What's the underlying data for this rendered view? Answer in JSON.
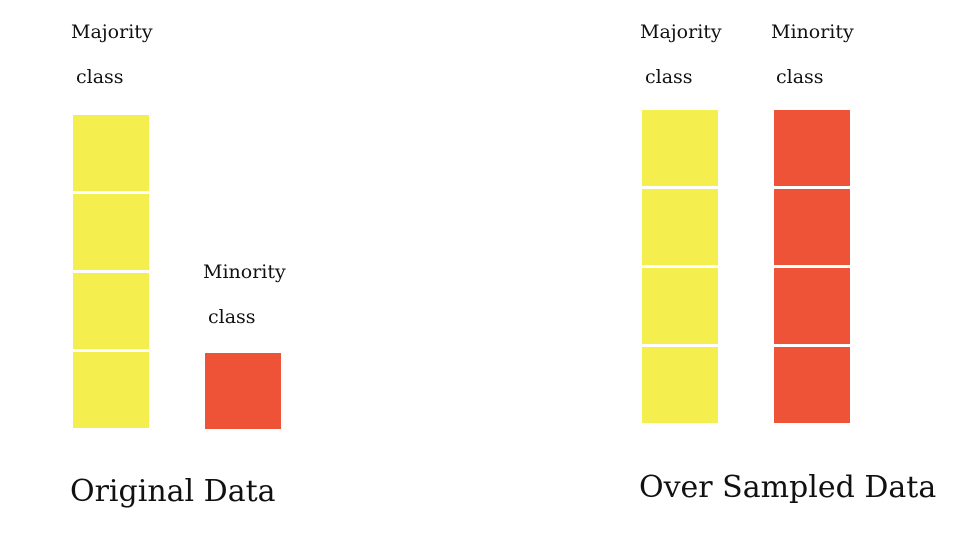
{
  "original": {
    "caption": "Original Data",
    "majority": {
      "line1": "Majority",
      "line2": "class",
      "blocks": 4
    },
    "minority": {
      "line1": "Minority",
      "line2": "class",
      "blocks": 1
    }
  },
  "oversampled": {
    "caption": "Over Sampled Data",
    "majority": {
      "line1": "Majority",
      "line2": "class",
      "blocks": 4
    },
    "minority": {
      "line1": "Minority",
      "line2": "class",
      "blocks": 4
    }
  },
  "colors": {
    "majority": "#f4ef4f",
    "minority": "#ef5337"
  }
}
